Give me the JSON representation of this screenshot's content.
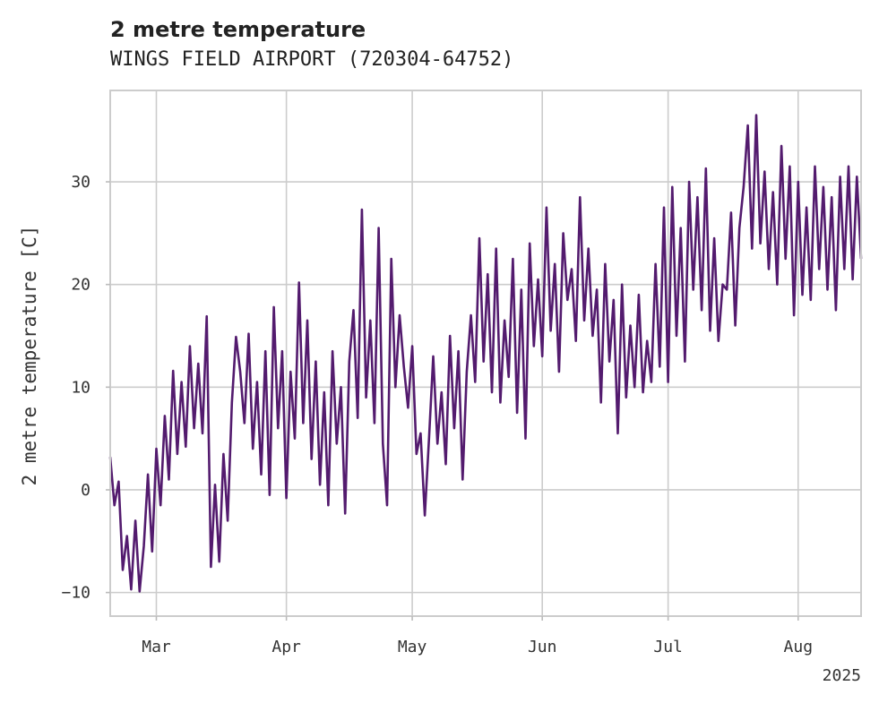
{
  "chart_data": {
    "type": "line",
    "title": "2 metre temperature",
    "subtitle": "WINGS FIELD AIRPORT (720304-64752)",
    "ylabel": "2 metre temperature [C]",
    "xlabel": "",
    "x_range": [
      "2025-02-18",
      "2025-08-16"
    ],
    "ylim": [
      -12.3,
      38.9
    ],
    "y_ticks": [
      -10,
      0,
      10,
      20,
      30
    ],
    "y_tick_labels": [
      "−10",
      "0",
      "10",
      "20",
      "30"
    ],
    "x_ticks": [
      {
        "date": "2025-03-01",
        "label": "Mar"
      },
      {
        "date": "2025-04-01",
        "label": "Apr"
      },
      {
        "date": "2025-05-01",
        "label": "May"
      },
      {
        "date": "2025-06-01",
        "label": "Jun"
      },
      {
        "date": "2025-07-01",
        "label": "Jul"
      },
      {
        "date": "2025-08-01",
        "label": "Aug"
      }
    ],
    "x_offset_label": "2025",
    "grid": true,
    "series": [
      {
        "color": "#531b6e",
        "points": [
          [
            "2025-02-18",
            3.2
          ],
          [
            "2025-02-19",
            -1.5
          ],
          [
            "2025-02-20",
            0.8
          ],
          [
            "2025-02-21",
            -7.8
          ],
          [
            "2025-02-22",
            -4.5
          ],
          [
            "2025-02-23",
            -9.7
          ],
          [
            "2025-02-24",
            -3.0
          ],
          [
            "2025-02-25",
            -9.9
          ],
          [
            "2025-02-26",
            -5.5
          ],
          [
            "2025-02-27",
            1.5
          ],
          [
            "2025-02-28",
            -6.0
          ],
          [
            "2025-03-01",
            4.0
          ],
          [
            "2025-03-02",
            -1.5
          ],
          [
            "2025-03-03",
            7.2
          ],
          [
            "2025-03-04",
            1.0
          ],
          [
            "2025-03-05",
            11.6
          ],
          [
            "2025-03-06",
            3.5
          ],
          [
            "2025-03-07",
            10.5
          ],
          [
            "2025-03-08",
            4.2
          ],
          [
            "2025-03-09",
            14.0
          ],
          [
            "2025-03-10",
            6.0
          ],
          [
            "2025-03-11",
            12.3
          ],
          [
            "2025-03-12",
            5.5
          ],
          [
            "2025-03-13",
            16.9
          ],
          [
            "2025-03-14",
            -7.5
          ],
          [
            "2025-03-15",
            0.5
          ],
          [
            "2025-03-16",
            -7.0
          ],
          [
            "2025-03-17",
            3.5
          ],
          [
            "2025-03-18",
            -3.0
          ],
          [
            "2025-03-19",
            8.5
          ],
          [
            "2025-03-20",
            14.9
          ],
          [
            "2025-03-21",
            11.5
          ],
          [
            "2025-03-22",
            6.5
          ],
          [
            "2025-03-23",
            15.2
          ],
          [
            "2025-03-24",
            4.0
          ],
          [
            "2025-03-25",
            10.5
          ],
          [
            "2025-03-26",
            1.5
          ],
          [
            "2025-03-27",
            13.5
          ],
          [
            "2025-03-28",
            -0.5
          ],
          [
            "2025-03-29",
            17.8
          ],
          [
            "2025-03-30",
            6.0
          ],
          [
            "2025-03-31",
            13.5
          ],
          [
            "2025-04-01",
            -0.8
          ],
          [
            "2025-04-02",
            11.5
          ],
          [
            "2025-04-03",
            5.0
          ],
          [
            "2025-04-04",
            20.2
          ],
          [
            "2025-04-05",
            6.5
          ],
          [
            "2025-04-06",
            16.5
          ],
          [
            "2025-04-07",
            3.0
          ],
          [
            "2025-04-08",
            12.5
          ],
          [
            "2025-04-09",
            0.5
          ],
          [
            "2025-04-10",
            9.5
          ],
          [
            "2025-04-11",
            -1.5
          ],
          [
            "2025-04-12",
            13.5
          ],
          [
            "2025-04-13",
            4.5
          ],
          [
            "2025-04-14",
            10.0
          ],
          [
            "2025-04-15",
            -2.3
          ],
          [
            "2025-04-16",
            12.5
          ],
          [
            "2025-04-17",
            17.5
          ],
          [
            "2025-04-18",
            7.0
          ],
          [
            "2025-04-19",
            27.3
          ],
          [
            "2025-04-20",
            9.0
          ],
          [
            "2025-04-21",
            16.5
          ],
          [
            "2025-04-22",
            6.5
          ],
          [
            "2025-04-23",
            25.5
          ],
          [
            "2025-04-24",
            4.5
          ],
          [
            "2025-04-25",
            -1.5
          ],
          [
            "2025-04-26",
            22.5
          ],
          [
            "2025-04-27",
            10.0
          ],
          [
            "2025-04-28",
            17.0
          ],
          [
            "2025-04-29",
            12.0
          ],
          [
            "2025-04-30",
            8.0
          ],
          [
            "2025-05-01",
            14.0
          ],
          [
            "2025-05-02",
            3.5
          ],
          [
            "2025-05-03",
            5.5
          ],
          [
            "2025-05-04",
            -2.5
          ],
          [
            "2025-05-05",
            5.0
          ],
          [
            "2025-05-06",
            13.0
          ],
          [
            "2025-05-07",
            4.5
          ],
          [
            "2025-05-08",
            9.5
          ],
          [
            "2025-05-09",
            2.5
          ],
          [
            "2025-05-10",
            15.0
          ],
          [
            "2025-05-11",
            6.0
          ],
          [
            "2025-05-12",
            13.5
          ],
          [
            "2025-05-13",
            1.0
          ],
          [
            "2025-05-14",
            11.5
          ],
          [
            "2025-05-15",
            17.0
          ],
          [
            "2025-05-16",
            10.5
          ],
          [
            "2025-05-17",
            24.5
          ],
          [
            "2025-05-18",
            12.5
          ],
          [
            "2025-05-19",
            21.0
          ],
          [
            "2025-05-20",
            9.5
          ],
          [
            "2025-05-21",
            23.5
          ],
          [
            "2025-05-22",
            8.5
          ],
          [
            "2025-05-23",
            16.5
          ],
          [
            "2025-05-24",
            11.0
          ],
          [
            "2025-05-25",
            22.5
          ],
          [
            "2025-05-26",
            7.5
          ],
          [
            "2025-05-27",
            19.5
          ],
          [
            "2025-05-28",
            5.0
          ],
          [
            "2025-05-29",
            24.0
          ],
          [
            "2025-05-30",
            14.0
          ],
          [
            "2025-05-31",
            20.5
          ],
          [
            "2025-06-01",
            13.0
          ],
          [
            "2025-06-02",
            27.5
          ],
          [
            "2025-06-03",
            15.5
          ],
          [
            "2025-06-04",
            22.0
          ],
          [
            "2025-06-05",
            11.5
          ],
          [
            "2025-06-06",
            25.0
          ],
          [
            "2025-06-07",
            18.5
          ],
          [
            "2025-06-08",
            21.5
          ],
          [
            "2025-06-09",
            14.5
          ],
          [
            "2025-06-10",
            28.5
          ],
          [
            "2025-06-11",
            16.5
          ],
          [
            "2025-06-12",
            23.5
          ],
          [
            "2025-06-13",
            15.0
          ],
          [
            "2025-06-14",
            19.5
          ],
          [
            "2025-06-15",
            8.5
          ],
          [
            "2025-06-16",
            22.0
          ],
          [
            "2025-06-17",
            12.5
          ],
          [
            "2025-06-18",
            18.5
          ],
          [
            "2025-06-19",
            5.5
          ],
          [
            "2025-06-20",
            20.0
          ],
          [
            "2025-06-21",
            9.0
          ],
          [
            "2025-06-22",
            16.0
          ],
          [
            "2025-06-23",
            10.0
          ],
          [
            "2025-06-24",
            19.0
          ],
          [
            "2025-06-25",
            9.5
          ],
          [
            "2025-06-26",
            14.5
          ],
          [
            "2025-06-27",
            10.5
          ],
          [
            "2025-06-28",
            22.0
          ],
          [
            "2025-06-29",
            12.0
          ],
          [
            "2025-06-30",
            27.5
          ],
          [
            "2025-07-01",
            10.5
          ],
          [
            "2025-07-02",
            29.5
          ],
          [
            "2025-07-03",
            15.0
          ],
          [
            "2025-07-04",
            25.5
          ],
          [
            "2025-07-05",
            12.5
          ],
          [
            "2025-07-06",
            30.0
          ],
          [
            "2025-07-07",
            19.5
          ],
          [
            "2025-07-08",
            28.5
          ],
          [
            "2025-07-09",
            17.5
          ],
          [
            "2025-07-10",
            31.3
          ],
          [
            "2025-07-11",
            15.5
          ],
          [
            "2025-07-12",
            24.5
          ],
          [
            "2025-07-13",
            14.5
          ],
          [
            "2025-07-14",
            20.0
          ],
          [
            "2025-07-15",
            19.5
          ],
          [
            "2025-07-16",
            27.0
          ],
          [
            "2025-07-17",
            16.0
          ],
          [
            "2025-07-18",
            25.5
          ],
          [
            "2025-07-19",
            29.5
          ],
          [
            "2025-07-20",
            35.5
          ],
          [
            "2025-07-21",
            23.5
          ],
          [
            "2025-07-22",
            36.5
          ],
          [
            "2025-07-23",
            24.0
          ],
          [
            "2025-07-24",
            31.0
          ],
          [
            "2025-07-25",
            21.5
          ],
          [
            "2025-07-26",
            29.0
          ],
          [
            "2025-07-27",
            20.0
          ],
          [
            "2025-07-28",
            33.5
          ],
          [
            "2025-07-29",
            22.5
          ],
          [
            "2025-07-30",
            31.5
          ],
          [
            "2025-07-31",
            17.0
          ],
          [
            "2025-08-01",
            30.0
          ],
          [
            "2025-08-02",
            19.0
          ],
          [
            "2025-08-03",
            27.5
          ],
          [
            "2025-08-04",
            18.5
          ],
          [
            "2025-08-05",
            31.5
          ],
          [
            "2025-08-06",
            21.5
          ],
          [
            "2025-08-07",
            29.5
          ],
          [
            "2025-08-08",
            19.5
          ],
          [
            "2025-08-09",
            28.5
          ],
          [
            "2025-08-10",
            17.5
          ],
          [
            "2025-08-11",
            30.5
          ],
          [
            "2025-08-12",
            21.5
          ],
          [
            "2025-08-13",
            31.5
          ],
          [
            "2025-08-14",
            20.5
          ],
          [
            "2025-08-15",
            30.5
          ],
          [
            "2025-08-16",
            22.5
          ]
        ]
      }
    ]
  }
}
